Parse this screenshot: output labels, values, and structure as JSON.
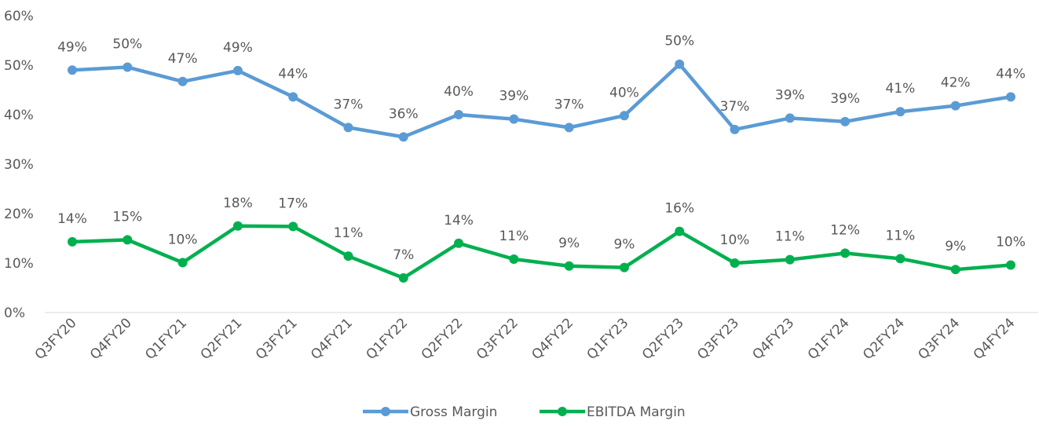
{
  "chart_data": {
    "type": "line",
    "categories": [
      "Q3FY20",
      "Q4FY20",
      "Q1FY21",
      "Q2FY21",
      "Q3FY21",
      "Q4FY21",
      "Q1FY22",
      "Q2FY22",
      "Q3FY22",
      "Q4FY22",
      "Q1FY23",
      "Q2FY23",
      "Q3FY23",
      "Q4FY23",
      "Q1FY24",
      "Q2FY24",
      "Q3FY24",
      "Q4FY24"
    ],
    "series": [
      {
        "name": "Gross Margin",
        "color": "#5b9bd5",
        "values": [
          49.0,
          49.6,
          46.7,
          48.9,
          43.6,
          37.4,
          35.5,
          40.0,
          39.1,
          37.4,
          39.8,
          50.2,
          37.0,
          39.3,
          38.6,
          40.6,
          41.8,
          43.6
        ],
        "value_labels": [
          "49%",
          "50%",
          "47%",
          "49%",
          "44%",
          "37%",
          "36%",
          "40%",
          "39%",
          "37%",
          "40%",
          "50%",
          "37%",
          "39%",
          "39%",
          "41%",
          "42%",
          "44%"
        ]
      },
      {
        "name": "EBITDA Margin",
        "color": "#00b04f",
        "values": [
          14.3,
          14.7,
          10.1,
          17.5,
          17.4,
          11.4,
          7.0,
          14.0,
          10.8,
          9.4,
          9.1,
          16.4,
          10.0,
          10.7,
          12.0,
          10.9,
          8.7,
          9.6
        ],
        "value_labels": [
          "14%",
          "15%",
          "10%",
          "18%",
          "17%",
          "11%",
          "7%",
          "14%",
          "11%",
          "9%",
          "9%",
          "16%",
          "10%",
          "11%",
          "12%",
          "11%",
          "9%",
          "10%"
        ]
      }
    ],
    "ylim": [
      0,
      60
    ],
    "yticks": [
      {
        "value": 0,
        "label": "0%"
      },
      {
        "value": 10,
        "label": "10%"
      },
      {
        "value": 20,
        "label": "20%"
      },
      {
        "value": 30,
        "label": "30%"
      },
      {
        "value": 40,
        "label": "40%"
      },
      {
        "value": 50,
        "label": "50%"
      },
      {
        "value": 60,
        "label": "60%"
      }
    ],
    "grid": false,
    "legend": "bottom"
  }
}
